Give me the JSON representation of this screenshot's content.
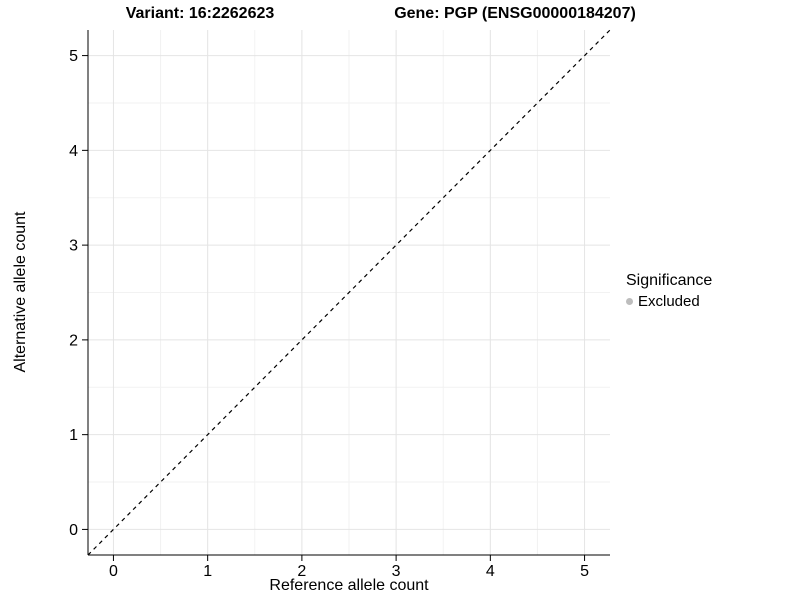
{
  "chart_data": {
    "type": "scatter",
    "title_left": "Variant: 16:2262623",
    "title_right": "Gene: PGP (ENSG00000184207)",
    "xlabel": "Reference allele count",
    "ylabel": "Alternative allele count",
    "x_ticks": [
      0,
      1,
      2,
      3,
      4,
      5
    ],
    "y_ticks": [
      0,
      1,
      2,
      3,
      4,
      5
    ],
    "xlim": [
      -0.27,
      5.27
    ],
    "ylim": [
      -0.27,
      5.27
    ],
    "grid": {
      "major_step": 1,
      "minor_step": 0.5,
      "major_color": "#e4e4e4",
      "minor_color": "#f2f2f2"
    },
    "points": [],
    "identity_line": {
      "style": "dashed",
      "color": "#000000",
      "from": [
        -0.27,
        -0.27
      ],
      "to": [
        5.27,
        5.27
      ]
    },
    "legend": {
      "title": "Significance",
      "position": "right",
      "items": [
        {
          "label": "Excluded",
          "color": "#bdbdbd",
          "marker": "circle"
        }
      ]
    }
  }
}
